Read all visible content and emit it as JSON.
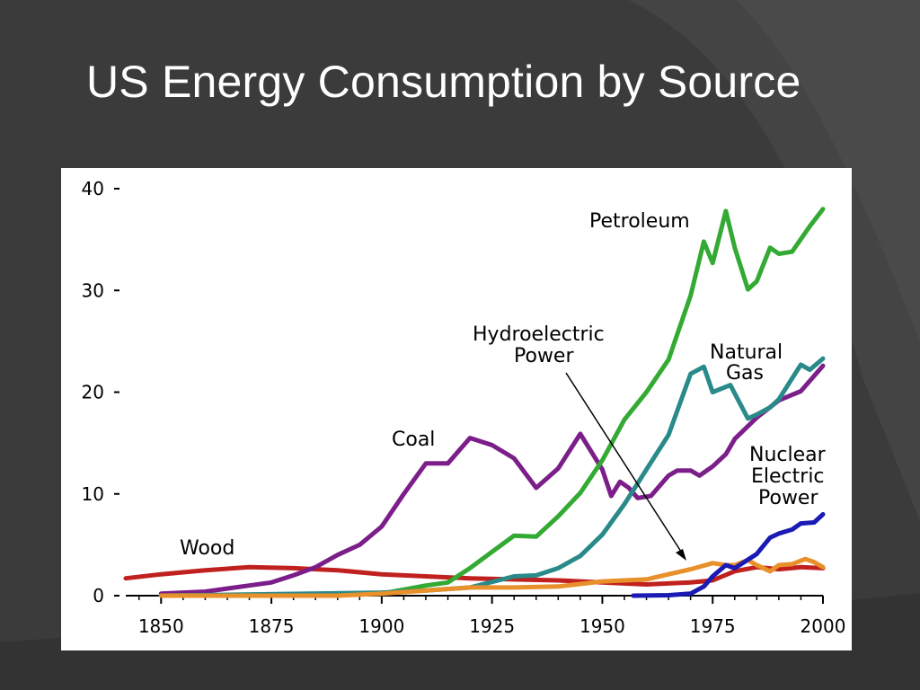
{
  "slide": {
    "title": "US Energy Consumption by Source",
    "background_color": "#3b3b3b"
  },
  "chart_data": {
    "type": "line",
    "title": "",
    "xlabel": "",
    "ylabel": "",
    "xlim": [
      1842,
      2000
    ],
    "ylim": [
      0,
      40
    ],
    "x_ticks": [
      1850,
      1875,
      1900,
      1925,
      1950,
      1975,
      2000
    ],
    "y_ticks": [
      0,
      10,
      20,
      30,
      40
    ],
    "grid": false,
    "annotations": {
      "petroleum": "Petroleum",
      "hydro_line1": "Hydroelectric",
      "hydro_line2": "Power",
      "gas_line1": "Natural",
      "gas_line2": "Gas",
      "coal": "Coal",
      "nuclear_line1": "Nuclear",
      "nuclear_line2": "Electric",
      "nuclear_line3": "Power",
      "wood": "Wood"
    },
    "series": [
      {
        "key": "wood",
        "color": "#c0201e",
        "points": [
          [
            1842,
            1.7
          ],
          [
            1850,
            2.1
          ],
          [
            1860,
            2.5
          ],
          [
            1870,
            2.8
          ],
          [
            1880,
            2.7
          ],
          [
            1890,
            2.5
          ],
          [
            1900,
            2.1
          ],
          [
            1910,
            1.9
          ],
          [
            1920,
            1.7
          ],
          [
            1930,
            1.6
          ],
          [
            1940,
            1.5
          ],
          [
            1950,
            1.3
          ],
          [
            1960,
            1.1
          ],
          [
            1970,
            1.3
          ],
          [
            1975,
            1.5
          ],
          [
            1980,
            2.4
          ],
          [
            1985,
            2.8
          ],
          [
            1990,
            2.6
          ],
          [
            1995,
            2.8
          ],
          [
            2000,
            2.7
          ]
        ]
      },
      {
        "key": "coal",
        "color": "#7b1e8a",
        "points": [
          [
            1850,
            0.2
          ],
          [
            1860,
            0.4
          ],
          [
            1870,
            1.0
          ],
          [
            1875,
            1.3
          ],
          [
            1880,
            2.0
          ],
          [
            1885,
            2.8
          ],
          [
            1890,
            4.0
          ],
          [
            1895,
            5.0
          ],
          [
            1900,
            6.8
          ],
          [
            1905,
            10.0
          ],
          [
            1910,
            13.0
          ],
          [
            1915,
            13.0
          ],
          [
            1920,
            15.5
          ],
          [
            1925,
            14.8
          ],
          [
            1930,
            13.5
          ],
          [
            1935,
            10.6
          ],
          [
            1940,
            12.5
          ],
          [
            1945,
            15.9
          ],
          [
            1950,
            12.4
          ],
          [
            1952,
            9.8
          ],
          [
            1954,
            11.2
          ],
          [
            1956,
            10.6
          ],
          [
            1958,
            9.6
          ],
          [
            1961,
            9.8
          ],
          [
            1965,
            11.8
          ],
          [
            1967,
            12.3
          ],
          [
            1970,
            12.3
          ],
          [
            1972,
            11.8
          ],
          [
            1975,
            12.7
          ],
          [
            1978,
            13.9
          ],
          [
            1980,
            15.4
          ],
          [
            1985,
            17.5
          ],
          [
            1990,
            19.2
          ],
          [
            1995,
            20.1
          ],
          [
            2000,
            22.6
          ]
        ]
      },
      {
        "key": "petroleum",
        "color": "#33aa33",
        "points": [
          [
            1850,
            0.0
          ],
          [
            1880,
            0.1
          ],
          [
            1900,
            0.2
          ],
          [
            1910,
            1.0
          ],
          [
            1915,
            1.3
          ],
          [
            1920,
            2.7
          ],
          [
            1925,
            4.3
          ],
          [
            1930,
            5.9
          ],
          [
            1935,
            5.8
          ],
          [
            1940,
            7.8
          ],
          [
            1945,
            10.1
          ],
          [
            1950,
            13.3
          ],
          [
            1955,
            17.3
          ],
          [
            1960,
            20.0
          ],
          [
            1965,
            23.2
          ],
          [
            1970,
            29.5
          ],
          [
            1973,
            34.8
          ],
          [
            1975,
            32.7
          ],
          [
            1978,
            37.8
          ],
          [
            1980,
            34.2
          ],
          [
            1983,
            30.1
          ],
          [
            1985,
            30.9
          ],
          [
            1988,
            34.2
          ],
          [
            1990,
            33.6
          ],
          [
            1993,
            33.8
          ],
          [
            1997,
            36.3
          ],
          [
            2000,
            38.0
          ]
        ]
      },
      {
        "key": "natural_gas",
        "color": "#2a8a8a",
        "points": [
          [
            1850,
            0.0
          ],
          [
            1900,
            0.3
          ],
          [
            1910,
            0.5
          ],
          [
            1920,
            0.8
          ],
          [
            1930,
            1.9
          ],
          [
            1935,
            2.0
          ],
          [
            1940,
            2.7
          ],
          [
            1945,
            3.9
          ],
          [
            1950,
            6.0
          ],
          [
            1955,
            9.0
          ],
          [
            1960,
            12.4
          ],
          [
            1965,
            15.8
          ],
          [
            1970,
            21.8
          ],
          [
            1973,
            22.5
          ],
          [
            1975,
            20.0
          ],
          [
            1979,
            20.7
          ],
          [
            1983,
            17.4
          ],
          [
            1985,
            17.8
          ],
          [
            1988,
            18.5
          ],
          [
            1990,
            19.3
          ],
          [
            1995,
            22.7
          ],
          [
            1997,
            22.2
          ],
          [
            2000,
            23.3
          ]
        ]
      },
      {
        "key": "hydroelectric",
        "color": "#e8902a",
        "points": [
          [
            1850,
            0.0
          ],
          [
            1890,
            0.0
          ],
          [
            1900,
            0.2
          ],
          [
            1910,
            0.5
          ],
          [
            1920,
            0.8
          ],
          [
            1930,
            0.8
          ],
          [
            1940,
            0.9
          ],
          [
            1950,
            1.4
          ],
          [
            1960,
            1.6
          ],
          [
            1965,
            2.1
          ],
          [
            1970,
            2.6
          ],
          [
            1975,
            3.2
          ],
          [
            1978,
            3.0
          ],
          [
            1980,
            3.0
          ],
          [
            1983,
            3.5
          ],
          [
            1985,
            3.0
          ],
          [
            1988,
            2.4
          ],
          [
            1990,
            3.0
          ],
          [
            1993,
            3.1
          ],
          [
            1996,
            3.6
          ],
          [
            1998,
            3.3
          ],
          [
            2000,
            2.8
          ]
        ]
      },
      {
        "key": "nuclear",
        "color": "#1a1ab4",
        "points": [
          [
            1957,
            0.0
          ],
          [
            1965,
            0.04
          ],
          [
            1970,
            0.2
          ],
          [
            1973,
            0.9
          ],
          [
            1975,
            1.9
          ],
          [
            1978,
            3.0
          ],
          [
            1980,
            2.7
          ],
          [
            1985,
            4.1
          ],
          [
            1988,
            5.7
          ],
          [
            1990,
            6.1
          ],
          [
            1993,
            6.5
          ],
          [
            1995,
            7.1
          ],
          [
            1998,
            7.2
          ],
          [
            2000,
            8.0
          ]
        ]
      }
    ]
  }
}
